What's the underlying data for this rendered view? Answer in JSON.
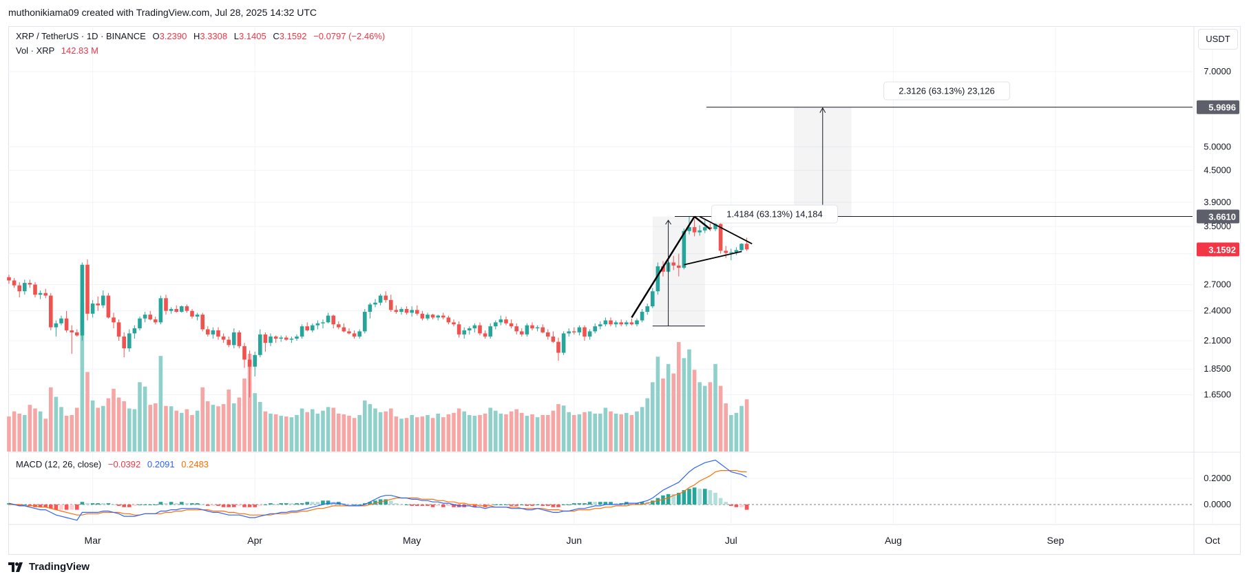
{
  "header": {
    "creator_line": "muthonikiama09 created with TradingView.com, Jul 28, 2025 14:32 UTC",
    "currency_button": "USDT",
    "brand": "TradingView"
  },
  "legend": {
    "symbol": "XRP / TetherUS · 1D · BINANCE",
    "open_label": "O",
    "open": "3.2390",
    "high_label": "H",
    "high": "3.3308",
    "low_label": "L",
    "low": "3.1405",
    "close_label": "C",
    "close": "3.1592",
    "change": "−0.0797 (−2.46%)",
    "vol_label": "Vol · XRP",
    "vol_value": "142.83 M",
    "macd_label": "MACD (12, 26, close)",
    "macd_hist": "−0.0392",
    "macd_line": "0.2091",
    "macd_signal": "0.2483"
  },
  "annotations": {
    "pole_measure": "1.4184 (63.13%) 14,184",
    "target_measure": "2.3126 (63.13%) 23,126",
    "target_price": "5.9696",
    "resistance_price": "3.6610",
    "last_price": "3.1592"
  },
  "colors": {
    "up": "#26a69a",
    "down": "#ef5350",
    "vol_up": "#8fd1ca",
    "vol_down": "#f5a6a5",
    "macd": "#2962ff",
    "signal": "#ff6d00",
    "hist_up": "#26a69a",
    "hist_down": "#ff5252"
  },
  "chart_data": [
    {
      "type": "candlestick",
      "scale": "log",
      "price_ticks": [
        7.0,
        5.0,
        4.5,
        3.9,
        3.5,
        3.1,
        2.7,
        2.4,
        2.1,
        1.85,
        1.65
      ],
      "price_tick_labels": [
        "7.0000",
        "5.0000",
        "4.5000",
        "3.9000",
        "3.5000",
        "3.1000",
        "2.7000",
        "2.4000",
        "2.1000",
        "1.8500",
        "1.6500"
      ],
      "x_labels": [
        "Mar",
        "Apr",
        "May",
        "Jun",
        "Jul",
        "Aug",
        "Sep",
        "Oct"
      ],
      "start_date": "2025-02-13",
      "ohlc": [
        [
          2.79,
          2.82,
          2.71,
          2.75
        ],
        [
          2.75,
          2.78,
          2.66,
          2.69
        ],
        [
          2.69,
          2.73,
          2.55,
          2.62
        ],
        [
          2.62,
          2.76,
          2.58,
          2.72
        ],
        [
          2.72,
          2.76,
          2.66,
          2.7
        ],
        [
          2.7,
          2.73,
          2.55,
          2.58
        ],
        [
          2.58,
          2.63,
          2.53,
          2.6
        ],
        [
          2.6,
          2.65,
          2.54,
          2.57
        ],
        [
          2.57,
          2.6,
          2.2,
          2.23
        ],
        [
          2.23,
          2.3,
          2.14,
          2.27
        ],
        [
          2.27,
          2.35,
          2.25,
          2.32
        ],
        [
          2.32,
          2.4,
          2.18,
          2.2
        ],
        [
          2.2,
          2.25,
          1.98,
          2.18
        ],
        [
          2.18,
          2.21,
          2.14,
          2.15
        ],
        [
          2.15,
          2.98,
          2.1,
          2.95
        ],
        [
          2.95,
          3.02,
          2.3,
          2.37
        ],
        [
          2.37,
          2.52,
          2.33,
          2.48
        ],
        [
          2.48,
          2.56,
          2.4,
          2.46
        ],
        [
          2.46,
          2.63,
          2.43,
          2.57
        ],
        [
          2.57,
          2.6,
          2.32,
          2.33
        ],
        [
          2.33,
          2.38,
          2.22,
          2.28
        ],
        [
          2.28,
          2.31,
          2.1,
          2.14
        ],
        [
          2.14,
          2.18,
          1.95,
          2.03
        ],
        [
          2.03,
          2.21,
          2.0,
          2.17
        ],
        [
          2.17,
          2.25,
          2.12,
          2.22
        ],
        [
          2.22,
          2.34,
          2.2,
          2.32
        ],
        [
          2.32,
          2.39,
          2.28,
          2.36
        ],
        [
          2.36,
          2.4,
          2.3,
          2.31
        ],
        [
          2.31,
          2.34,
          2.26,
          2.28
        ],
        [
          2.28,
          2.57,
          2.26,
          2.54
        ],
        [
          2.54,
          2.58,
          2.36,
          2.4
        ],
        [
          2.4,
          2.44,
          2.37,
          2.42
        ],
        [
          2.42,
          2.46,
          2.38,
          2.39
        ],
        [
          2.39,
          2.46,
          2.38,
          2.45
        ],
        [
          2.45,
          2.47,
          2.38,
          2.4
        ],
        [
          2.4,
          2.42,
          2.32,
          2.34
        ],
        [
          2.34,
          2.38,
          2.3,
          2.36
        ],
        [
          2.36,
          2.38,
          2.19,
          2.21
        ],
        [
          2.21,
          2.24,
          2.14,
          2.16
        ],
        [
          2.16,
          2.23,
          2.12,
          2.2
        ],
        [
          2.2,
          2.23,
          2.11,
          2.14
        ],
        [
          2.14,
          2.17,
          2.08,
          2.11
        ],
        [
          2.11,
          2.14,
          2.04,
          2.06
        ],
        [
          2.06,
          2.22,
          2.03,
          2.18
        ],
        [
          2.18,
          2.2,
          2.03,
          2.05
        ],
        [
          2.05,
          2.08,
          1.86,
          1.93
        ],
        [
          1.93,
          2.01,
          1.63,
          1.87
        ],
        [
          1.87,
          2.0,
          1.79,
          1.97
        ],
        [
          1.97,
          2.21,
          1.95,
          2.16
        ],
        [
          2.16,
          2.18,
          2.0,
          2.08
        ],
        [
          2.08,
          2.17,
          2.05,
          2.14
        ],
        [
          2.14,
          2.15,
          2.08,
          2.12
        ],
        [
          2.12,
          2.15,
          2.09,
          2.13
        ],
        [
          2.13,
          2.15,
          2.1,
          2.11
        ],
        [
          2.11,
          2.14,
          2.08,
          2.12
        ],
        [
          2.12,
          2.16,
          2.1,
          2.14
        ],
        [
          2.14,
          2.26,
          2.12,
          2.24
        ],
        [
          2.24,
          2.28,
          2.19,
          2.2
        ],
        [
          2.2,
          2.27,
          2.18,
          2.25
        ],
        [
          2.25,
          2.3,
          2.21,
          2.27
        ],
        [
          2.27,
          2.31,
          2.22,
          2.28
        ],
        [
          2.28,
          2.38,
          2.27,
          2.35
        ],
        [
          2.35,
          2.36,
          2.22,
          2.26
        ],
        [
          2.26,
          2.29,
          2.21,
          2.23
        ],
        [
          2.23,
          2.27,
          2.18,
          2.19
        ],
        [
          2.19,
          2.22,
          2.16,
          2.17
        ],
        [
          2.17,
          2.2,
          2.12,
          2.14
        ],
        [
          2.14,
          2.21,
          2.12,
          2.19
        ],
        [
          2.19,
          2.42,
          2.17,
          2.39
        ],
        [
          2.39,
          2.49,
          2.32,
          2.47
        ],
        [
          2.47,
          2.53,
          2.44,
          2.49
        ],
        [
          2.49,
          2.59,
          2.46,
          2.57
        ],
        [
          2.57,
          2.62,
          2.49,
          2.52
        ],
        [
          2.52,
          2.58,
          2.39,
          2.41
        ],
        [
          2.41,
          2.46,
          2.37,
          2.39
        ],
        [
          2.39,
          2.44,
          2.36,
          2.42
        ],
        [
          2.42,
          2.45,
          2.36,
          2.38
        ],
        [
          2.38,
          2.45,
          2.34,
          2.41
        ],
        [
          2.41,
          2.46,
          2.35,
          2.37
        ],
        [
          2.37,
          2.4,
          2.3,
          2.32
        ],
        [
          2.32,
          2.38,
          2.3,
          2.36
        ],
        [
          2.36,
          2.37,
          2.31,
          2.33
        ],
        [
          2.33,
          2.36,
          2.3,
          2.35
        ],
        [
          2.35,
          2.38,
          2.31,
          2.33
        ],
        [
          2.33,
          2.35,
          2.26,
          2.28
        ],
        [
          2.28,
          2.31,
          2.24,
          2.26
        ],
        [
          2.26,
          2.29,
          2.13,
          2.16
        ],
        [
          2.16,
          2.23,
          2.12,
          2.2
        ],
        [
          2.2,
          2.24,
          2.16,
          2.22
        ],
        [
          2.22,
          2.27,
          2.18,
          2.25
        ],
        [
          2.25,
          2.28,
          2.15,
          2.17
        ],
        [
          2.17,
          2.2,
          2.12,
          2.14
        ],
        [
          2.14,
          2.27,
          2.12,
          2.24
        ],
        [
          2.24,
          2.3,
          2.21,
          2.28
        ],
        [
          2.28,
          2.35,
          2.25,
          2.31
        ],
        [
          2.31,
          2.34,
          2.25,
          2.27
        ],
        [
          2.27,
          2.31,
          2.22,
          2.24
        ],
        [
          2.24,
          2.27,
          2.16,
          2.19
        ],
        [
          2.19,
          2.22,
          2.14,
          2.16
        ],
        [
          2.16,
          2.27,
          2.14,
          2.25
        ],
        [
          2.25,
          2.28,
          2.2,
          2.22
        ],
        [
          2.22,
          2.25,
          2.19,
          2.23
        ],
        [
          2.23,
          2.26,
          2.17,
          2.18
        ],
        [
          2.18,
          2.21,
          2.11,
          2.14
        ],
        [
          2.14,
          2.19,
          2.08,
          2.09
        ],
        [
          2.09,
          2.13,
          1.92,
          1.99
        ],
        [
          1.99,
          2.19,
          1.97,
          2.17
        ],
        [
          2.17,
          2.22,
          2.14,
          2.19
        ],
        [
          2.19,
          2.23,
          2.16,
          2.18
        ],
        [
          2.18,
          2.25,
          2.15,
          2.23
        ],
        [
          2.23,
          2.25,
          2.1,
          2.14
        ],
        [
          2.14,
          2.21,
          2.11,
          2.19
        ],
        [
          2.19,
          2.27,
          2.17,
          2.24
        ],
        [
          2.24,
          2.29,
          2.21,
          2.26
        ],
        [
          2.26,
          2.33,
          2.24,
          2.3
        ],
        [
          2.3,
          2.33,
          2.24,
          2.26
        ],
        [
          2.26,
          2.3,
          2.23,
          2.28
        ],
        [
          2.28,
          2.31,
          2.24,
          2.26
        ],
        [
          2.26,
          2.3,
          2.24,
          2.28
        ],
        [
          2.28,
          2.32,
          2.25,
          2.26
        ],
        [
          2.26,
          2.32,
          2.24,
          2.3
        ],
        [
          2.3,
          2.42,
          2.28,
          2.39
        ],
        [
          2.39,
          2.48,
          2.36,
          2.45
        ],
        [
          2.45,
          2.66,
          2.43,
          2.62
        ],
        [
          2.62,
          2.98,
          2.58,
          2.93
        ],
        [
          2.93,
          3.0,
          2.8,
          2.86
        ],
        [
          2.86,
          3.04,
          2.84,
          2.98
        ],
        [
          2.98,
          3.07,
          2.88,
          2.94
        ],
        [
          2.94,
          3.1,
          2.8,
          2.91
        ],
        [
          2.91,
          3.47,
          2.89,
          3.43
        ],
        [
          3.43,
          3.66,
          3.38,
          3.49
        ],
        [
          3.49,
          3.62,
          3.35,
          3.41
        ],
        [
          3.41,
          3.52,
          3.36,
          3.44
        ],
        [
          3.44,
          3.6,
          3.4,
          3.49
        ],
        [
          3.49,
          3.55,
          3.43,
          3.46
        ],
        [
          3.46,
          3.57,
          3.43,
          3.54
        ],
        [
          3.54,
          3.57,
          3.1,
          3.14
        ],
        [
          3.14,
          3.21,
          3.04,
          3.11
        ],
        [
          3.11,
          3.17,
          3.01,
          3.12
        ],
        [
          3.12,
          3.19,
          3.08,
          3.15
        ],
        [
          3.15,
          3.25,
          3.12,
          3.24
        ],
        [
          3.24,
          3.33,
          3.14,
          3.16
        ]
      ],
      "volume_millions": [
        96,
        110,
        104,
        100,
        128,
        118,
        110,
        90,
        176,
        150,
        122,
        98,
        100,
        120,
        406,
        218,
        140,
        120,
        125,
        146,
        172,
        148,
        138,
        118,
        116,
        190,
        178,
        128,
        132,
        262,
        125,
        124,
        112,
        106,
        116,
        100,
        112,
        176,
        138,
        128,
        124,
        130,
        170,
        132,
        148,
        200,
        268,
        160,
        136,
        110,
        104,
        102,
        98,
        96,
        94,
        100,
        118,
        108,
        116,
        104,
        112,
        122,
        120,
        104,
        102,
        98,
        92,
        100,
        140,
        130,
        118,
        108,
        110,
        118,
        96,
        90,
        92,
        100,
        94,
        96,
        100,
        92,
        104,
        94,
        102,
        106,
        118,
        110,
        100,
        98,
        100,
        104,
        120,
        112,
        104,
        102,
        110,
        116,
        106,
        98,
        102,
        94,
        100,
        100,
        112,
        130,
        126,
        108,
        100,
        102,
        108,
        110,
        104,
        104,
        120,
        110,
        104,
        102,
        106,
        100,
        110,
        122,
        146,
        190,
        260,
        200,
        240,
        214,
        300,
        256,
        280,
        224,
        190,
        180,
        190,
        240,
        180,
        132,
        100,
        106,
        125,
        143
      ],
      "macd": [
        0.01,
        0.0,
        -0.01,
        -0.01,
        -0.02,
        -0.03,
        -0.04,
        -0.04,
        -0.06,
        -0.08,
        -0.09,
        -0.1,
        -0.11,
        -0.12,
        -0.06,
        -0.06,
        -0.06,
        -0.06,
        -0.05,
        -0.05,
        -0.06,
        -0.07,
        -0.09,
        -0.09,
        -0.09,
        -0.08,
        -0.07,
        -0.07,
        -0.07,
        -0.05,
        -0.05,
        -0.04,
        -0.04,
        -0.03,
        -0.03,
        -0.03,
        -0.03,
        -0.04,
        -0.05,
        -0.06,
        -0.06,
        -0.07,
        -0.08,
        -0.08,
        -0.08,
        -0.09,
        -0.1,
        -0.1,
        -0.09,
        -0.08,
        -0.07,
        -0.07,
        -0.06,
        -0.06,
        -0.05,
        -0.05,
        -0.04,
        -0.03,
        -0.02,
        -0.01,
        0.0,
        0.01,
        0.01,
        0.01,
        0.0,
        -0.01,
        -0.01,
        -0.01,
        0.0,
        0.02,
        0.04,
        0.06,
        0.07,
        0.07,
        0.06,
        0.05,
        0.05,
        0.04,
        0.04,
        0.03,
        0.03,
        0.02,
        0.02,
        0.01,
        0.01,
        0.0,
        -0.01,
        -0.01,
        -0.01,
        -0.02,
        -0.02,
        -0.03,
        -0.02,
        -0.02,
        -0.02,
        -0.02,
        -0.03,
        -0.03,
        -0.03,
        -0.04,
        -0.04,
        -0.03,
        -0.04,
        -0.05,
        -0.06,
        -0.06,
        -0.05,
        -0.05,
        -0.04,
        -0.03,
        -0.03,
        -0.02,
        -0.01,
        -0.01,
        0.0,
        0.0,
        0.0,
        0.0,
        0.01,
        0.01,
        0.01,
        0.02,
        0.03,
        0.05,
        0.08,
        0.11,
        0.13,
        0.15,
        0.17,
        0.21,
        0.25,
        0.28,
        0.3,
        0.32,
        0.33,
        0.34,
        0.31,
        0.28,
        0.25,
        0.24,
        0.23,
        0.21
      ],
      "signal": [
        0.0,
        0.0,
        0.0,
        -0.01,
        -0.01,
        -0.01,
        -0.02,
        -0.02,
        -0.03,
        -0.04,
        -0.05,
        -0.06,
        -0.07,
        -0.08,
        -0.08,
        -0.07,
        -0.07,
        -0.07,
        -0.06,
        -0.06,
        -0.06,
        -0.06,
        -0.07,
        -0.07,
        -0.08,
        -0.08,
        -0.07,
        -0.07,
        -0.07,
        -0.07,
        -0.06,
        -0.06,
        -0.05,
        -0.05,
        -0.04,
        -0.04,
        -0.04,
        -0.04,
        -0.04,
        -0.05,
        -0.05,
        -0.05,
        -0.06,
        -0.06,
        -0.07,
        -0.07,
        -0.08,
        -0.08,
        -0.08,
        -0.08,
        -0.08,
        -0.07,
        -0.07,
        -0.07,
        -0.06,
        -0.06,
        -0.05,
        -0.05,
        -0.04,
        -0.03,
        -0.03,
        -0.02,
        -0.01,
        -0.01,
        -0.01,
        -0.01,
        -0.01,
        -0.01,
        -0.01,
        0.0,
        0.01,
        0.02,
        0.03,
        0.04,
        0.05,
        0.05,
        0.05,
        0.05,
        0.05,
        0.04,
        0.04,
        0.04,
        0.03,
        0.03,
        0.02,
        0.02,
        0.01,
        0.01,
        0.0,
        0.0,
        -0.01,
        -0.01,
        -0.01,
        -0.02,
        -0.02,
        -0.02,
        -0.02,
        -0.02,
        -0.03,
        -0.03,
        -0.03,
        -0.03,
        -0.03,
        -0.04,
        -0.04,
        -0.04,
        -0.05,
        -0.05,
        -0.05,
        -0.04,
        -0.04,
        -0.04,
        -0.03,
        -0.03,
        -0.02,
        -0.02,
        -0.01,
        -0.01,
        -0.01,
        0.0,
        0.0,
        0.0,
        0.01,
        0.02,
        0.03,
        0.04,
        0.05,
        0.07,
        0.08,
        0.1,
        0.13,
        0.15,
        0.18,
        0.2,
        0.22,
        0.25,
        0.26,
        0.26,
        0.26,
        0.26,
        0.25,
        0.25
      ],
      "macd_ticks": [
        0.2,
        0.0
      ],
      "macd_tick_labels": [
        "0.2000",
        "0.0000"
      ]
    }
  ]
}
